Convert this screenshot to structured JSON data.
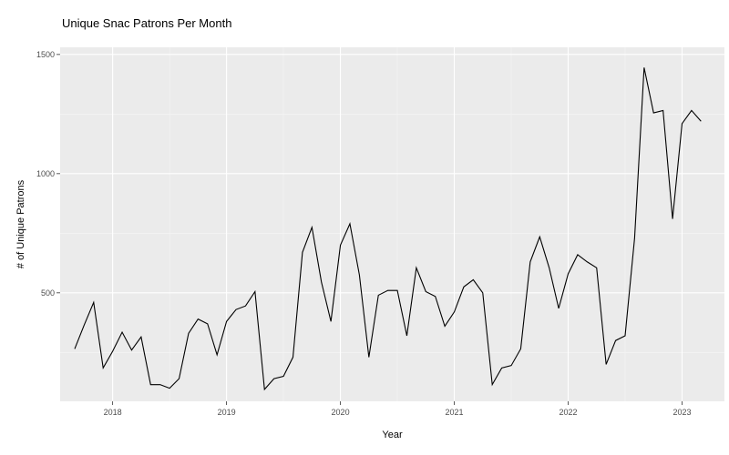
{
  "chart_data": {
    "type": "line",
    "title": "Unique Snac Patrons Per Month",
    "xlabel": "Year",
    "ylabel": "# of Unique Patrons",
    "x_ticks": [
      "2018",
      "2019",
      "2020",
      "2021",
      "2022",
      "2023"
    ],
    "y_ticks": [
      500,
      1000,
      1500
    ],
    "xlim": [
      "2017-07-15",
      "2023-05-15"
    ],
    "ylim": [
      45,
      1530
    ],
    "grid": true,
    "series": [
      {
        "color": "#000000",
        "points": [
          [
            "2017-09",
            265
          ],
          [
            "2017-10",
            365
          ],
          [
            "2017-11",
            460
          ],
          [
            "2017-12",
            185
          ],
          [
            "2018-01",
            255
          ],
          [
            "2018-02",
            335
          ],
          [
            "2018-03",
            260
          ],
          [
            "2018-04",
            315
          ],
          [
            "2018-05",
            115
          ],
          [
            "2018-06",
            115
          ],
          [
            "2018-07",
            100
          ],
          [
            "2018-08",
            140
          ],
          [
            "2018-09",
            330
          ],
          [
            "2018-10",
            390
          ],
          [
            "2018-11",
            370
          ],
          [
            "2018-12",
            240
          ],
          [
            "2019-01",
            380
          ],
          [
            "2019-02",
            430
          ],
          [
            "2019-03",
            445
          ],
          [
            "2019-04",
            505
          ],
          [
            "2019-05",
            95
          ],
          [
            "2019-06",
            140
          ],
          [
            "2019-07",
            150
          ],
          [
            "2019-08",
            230
          ],
          [
            "2019-09",
            670
          ],
          [
            "2019-10",
            775
          ],
          [
            "2019-11",
            545
          ],
          [
            "2019-12",
            380
          ],
          [
            "2020-01",
            700
          ],
          [
            "2020-02",
            790
          ],
          [
            "2020-03",
            575
          ],
          [
            "2020-04",
            230
          ],
          [
            "2020-05",
            490
          ],
          [
            "2020-06",
            510
          ],
          [
            "2020-07",
            510
          ],
          [
            "2020-08",
            320
          ],
          [
            "2020-09",
            605
          ],
          [
            "2020-10",
            505
          ],
          [
            "2020-11",
            485
          ],
          [
            "2020-12",
            360
          ],
          [
            "2021-01",
            420
          ],
          [
            "2021-02",
            525
          ],
          [
            "2021-03",
            555
          ],
          [
            "2021-04",
            500
          ],
          [
            "2021-05",
            115
          ],
          [
            "2021-06",
            185
          ],
          [
            "2021-07",
            195
          ],
          [
            "2021-08",
            265
          ],
          [
            "2021-09",
            630
          ],
          [
            "2021-10",
            735
          ],
          [
            "2021-11",
            605
          ],
          [
            "2021-12",
            435
          ],
          [
            "2022-01",
            580
          ],
          [
            "2022-02",
            660
          ],
          [
            "2022-03",
            630
          ],
          [
            "2022-04",
            605
          ],
          [
            "2022-05",
            200
          ],
          [
            "2022-06",
            300
          ],
          [
            "2022-07",
            320
          ],
          [
            "2022-08",
            730
          ],
          [
            "2022-09",
            1445
          ],
          [
            "2022-10",
            1255
          ],
          [
            "2022-11",
            1265
          ],
          [
            "2022-12",
            810
          ],
          [
            "2023-01",
            1210
          ],
          [
            "2023-02",
            1265
          ],
          [
            "2023-03",
            1220
          ]
        ]
      }
    ]
  }
}
